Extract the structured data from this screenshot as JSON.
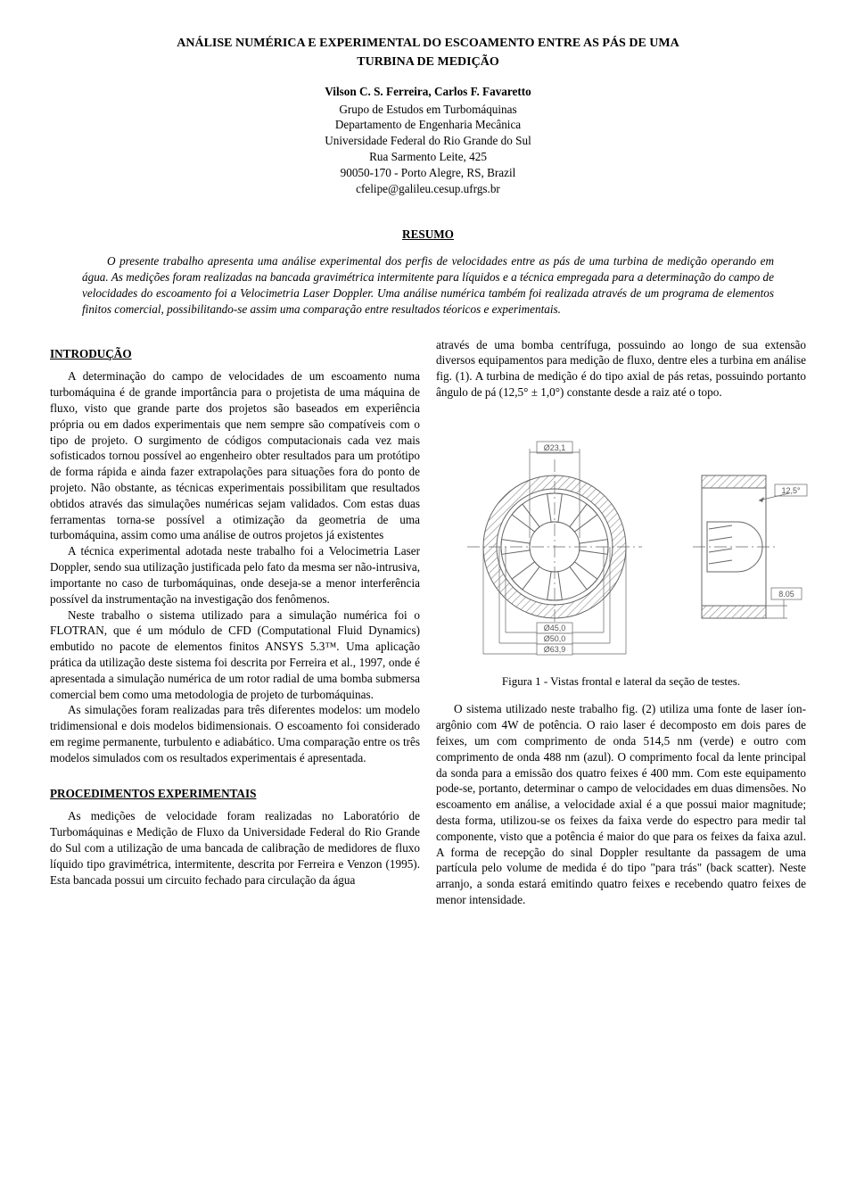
{
  "title_line1": "ANÁLISE NUMÉRICA E EXPERIMENTAL DO ESCOAMENTO ENTRE AS PÁS DE UMA",
  "title_line2": "TURBINA DE MEDIÇÃO",
  "authors": "Vilson C. S. Ferreira, Carlos F. Favaretto",
  "affil": {
    "l1": "Grupo de Estudos em Turbomáquinas",
    "l2": "Departamento de Engenharia Mecânica",
    "l3": "Universidade Federal do Rio Grande do Sul",
    "l4": "Rua Sarmento Leite, 425",
    "l5": "90050-170 - Porto Alegre, RS, Brazil",
    "l6": "cfelipe@galileu.cesup.ufrgs.br"
  },
  "resumo_head": "RESUMO",
  "abstract": "O presente trabalho apresenta uma análise experimental dos perfis de velocidades entre as pás de uma turbina de medição operando em água. As medições foram realizadas na bancada gravimétrica intermitente para líquidos e a técnica empregada para a determinação do campo de velocidades do escoamento foi a Velocimetria Laser Doppler. Uma análise numérica também foi realizada através de um programa de elementos finitos comercial, possibilitando-se assim uma comparação entre resultados téoricos e experimentais.",
  "intro_head": "INTRODUÇÃO",
  "intro_p1": "A determinação do campo de velocidades de um escoamento numa turbomáquina é de grande importância para o projetista de uma máquina de fluxo, visto que grande parte dos projetos são baseados em experiência própria ou em dados experimentais que nem sempre são compatíveis com o tipo de projeto. O surgimento de códigos computacionais cada vez mais sofisticados tornou possível ao engenheiro obter resultados para um protótipo de forma rápida e ainda fazer extrapolações para situações fora do ponto de projeto. Não obstante, as técnicas experimentais possibilitam que resultados obtidos através das simulações numéricas sejam validados. Com estas duas ferramentas torna-se possível a otimização da geometria de uma turbomáquina, assim como uma análise de outros projetos já existentes",
  "intro_p2": "A técnica experimental adotada neste trabalho foi a Velocimetria Laser Doppler, sendo sua utilização justificada pelo fato da mesma ser não-intrusiva, importante no caso de turbomáquinas, onde deseja-se a menor interferência possível da instrumentação na investigação dos fenômenos.",
  "intro_p3": "Neste trabalho o sistema utilizado para a simulação numérica foi o FLOTRAN, que é um módulo de CFD (Computational Fluid Dynamics) embutido no pacote de elementos finitos ANSYS 5.3™. Uma aplicação prática da utilização deste sistema foi descrita por Ferreira et al., 1997, onde é apresentada a simulação numérica de um rotor radial de uma bomba submersa comercial bem como uma metodologia de projeto de turbomáquinas.",
  "intro_p4": "As simulações foram realizadas para três diferentes modelos: um modelo tridimensional e dois modelos bidimensionais. O escoamento foi considerado em regime permanente, turbulento e adiabático. Uma comparação entre os três modelos simulados com os resultados experimentais é apresentada.",
  "proc_head": "PROCEDIMENTOS EXPERIMENTAIS",
  "proc_p1": "As medições de velocidade foram realizadas no Laboratório de Turbomáquinas e Medição de Fluxo da Universidade Federal do Rio Grande do Sul com a utilização de uma bancada de calibração de medidores de fluxo líquido tipo gravimétrica, intermitente, descrita por Ferreira e Venzon (1995). Esta bancada possui um circuito fechado para circulação da água",
  "right_p1": "através de uma bomba centrífuga, possuindo ao longo de sua extensão diversos equipamentos para medição de fluxo, dentre eles a turbina em análise fig. (1). A turbina de medição é do tipo axial de pás retas, possuindo portanto ângulo de pá (12,5° ± 1,0°) constante desde a raiz até o topo.",
  "fig_caption": "Figura 1 - Vistas frontal e lateral da seção de testes.",
  "fig": {
    "dim_top": "Ø23,1",
    "dim_d1": "Ø45,0",
    "dim_d2": "Ø50,0",
    "dim_d3": "Ø63,9",
    "angle": "12,5°",
    "thick": "8.05",
    "stroke_color": "#666666",
    "hatch_color": "#888888",
    "text_color": "#555555",
    "bg": "#ffffff",
    "font_size": 9
  },
  "right_p2": "O sistema utilizado neste trabalho fig. (2) utiliza uma fonte de laser íon-argônio com 4W de potência. O raio laser é decomposto em dois pares de feixes, um com comprimento de onda 514,5 nm (verde) e outro com comprimento de onda 488 nm (azul). O comprimento focal da lente principal da sonda para a emissão dos quatro feixes é 400 mm. Com este equipamento pode-se, portanto, determinar o campo de velocidades em duas dimensões. No escoamento em análise, a velocidade axial é a que possui maior magnitude; desta forma, utilizou-se os feixes da faixa verde do espectro para medir tal componente, visto que a potência é maior do que para os feixes da faixa azul. A forma de recepção do sinal Doppler resultante da passagem de uma partícula pelo volume de medida é do tipo \"para trás\" (back scatter). Neste arranjo, a sonda estará emitindo quatro feixes e recebendo quatro feixes de menor intensidade."
}
